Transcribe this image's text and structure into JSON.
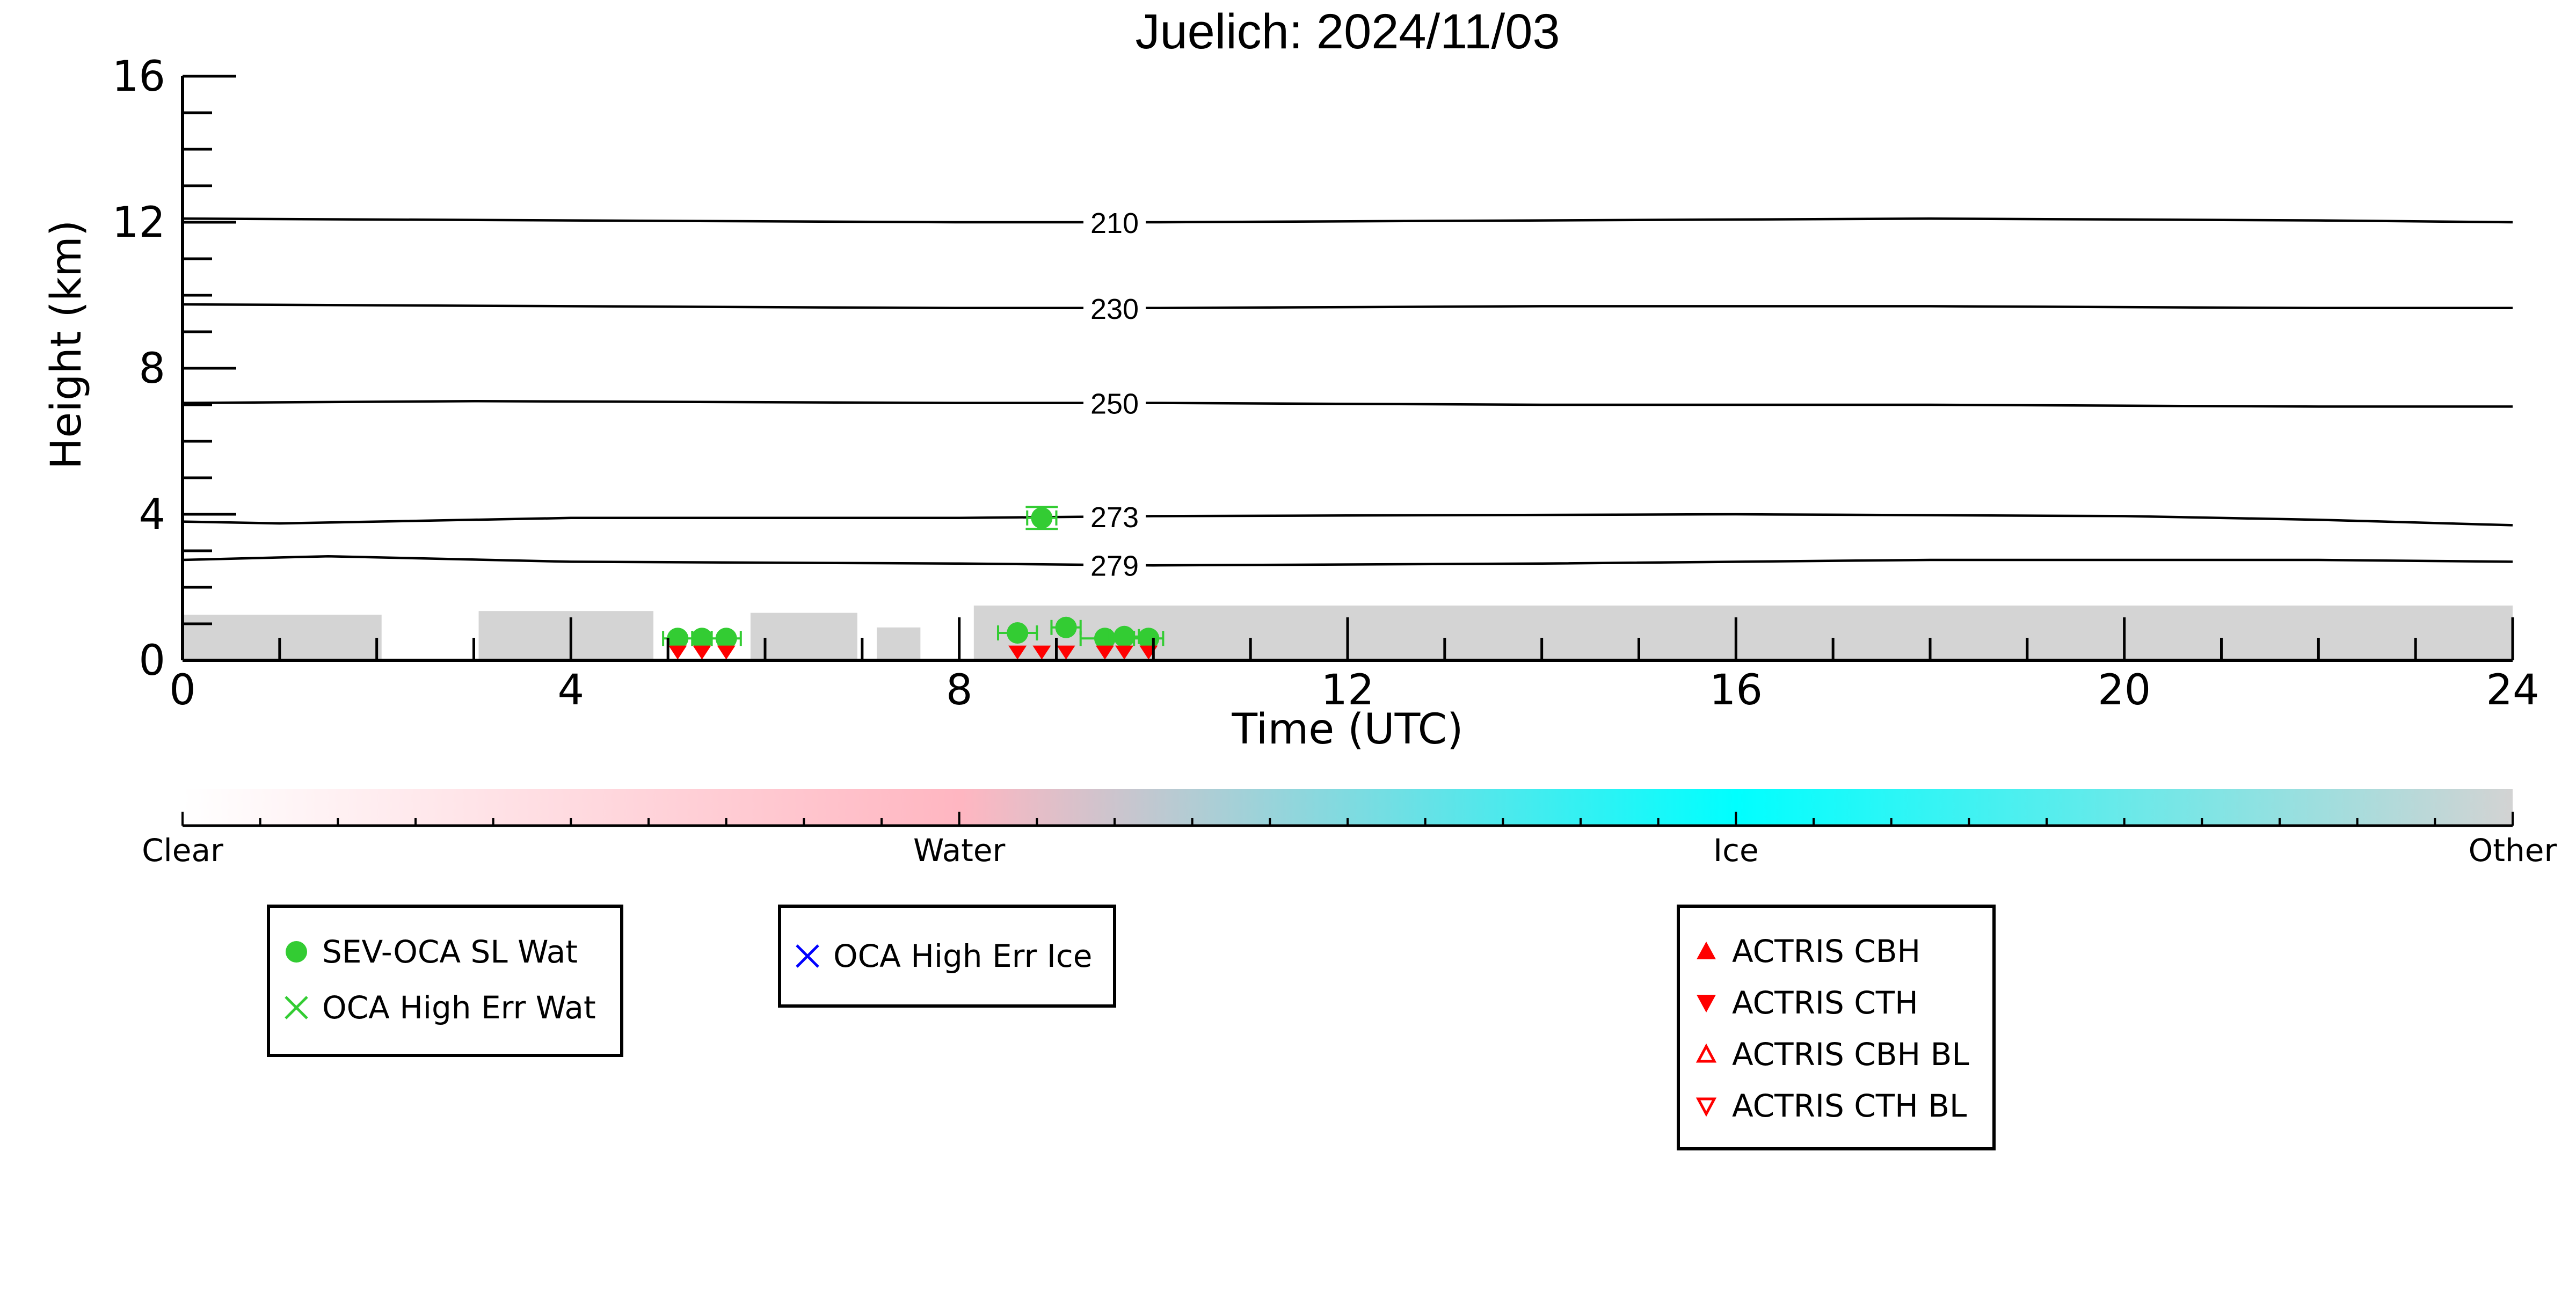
{
  "chart_data": {
    "type": "scatter",
    "title": "Juelich: 2024/11/03",
    "xlabel": "Time (UTC)",
    "ylabel": "Height (km)",
    "xlim": [
      0,
      24
    ],
    "ylim": [
      0,
      16
    ],
    "x_ticks": [
      0,
      4,
      8,
      12,
      16,
      20,
      24
    ],
    "y_ticks": [
      0,
      4,
      8,
      12,
      16
    ],
    "grid": false,
    "isotherms": [
      {
        "label": "210",
        "points": [
          [
            0,
            12.1
          ],
          [
            4,
            12.05
          ],
          [
            8,
            12.0
          ],
          [
            10,
            12.0
          ],
          [
            14,
            12.05
          ],
          [
            18,
            12.1
          ],
          [
            22,
            12.05
          ],
          [
            24,
            12.0
          ]
        ]
      },
      {
        "label": "230",
        "points": [
          [
            0,
            9.75
          ],
          [
            4,
            9.7
          ],
          [
            8,
            9.65
          ],
          [
            10,
            9.65
          ],
          [
            14,
            9.7
          ],
          [
            18,
            9.7
          ],
          [
            22,
            9.65
          ],
          [
            24,
            9.65
          ]
        ]
      },
      {
        "label": "250",
        "points": [
          [
            0,
            7.05
          ],
          [
            3,
            7.1
          ],
          [
            8,
            7.05
          ],
          [
            10,
            7.05
          ],
          [
            14,
            7.0
          ],
          [
            18,
            7.0
          ],
          [
            22,
            6.95
          ],
          [
            24,
            6.95
          ]
        ]
      },
      {
        "label": "273",
        "points": [
          [
            0,
            3.8
          ],
          [
            1,
            3.75
          ],
          [
            4,
            3.9
          ],
          [
            8,
            3.9
          ],
          [
            10,
            3.95
          ],
          [
            16,
            4.0
          ],
          [
            20,
            3.95
          ],
          [
            22,
            3.85
          ],
          [
            24,
            3.7
          ]
        ]
      },
      {
        "label": "279",
        "points": [
          [
            0,
            2.75
          ],
          [
            1.5,
            2.85
          ],
          [
            4,
            2.7
          ],
          [
            8,
            2.65
          ],
          [
            10,
            2.6
          ],
          [
            14,
            2.65
          ],
          [
            18,
            2.75
          ],
          [
            22,
            2.75
          ],
          [
            24,
            2.7
          ]
        ]
      }
    ],
    "isotherm_label_x": 9.6,
    "cloud_mask_blocks": [
      {
        "x0": 0.0,
        "x1": 2.05,
        "top": 1.25
      },
      {
        "x0": 3.05,
        "x1": 4.85,
        "top": 1.35
      },
      {
        "x0": 5.85,
        "x1": 6.95,
        "top": 1.3
      },
      {
        "x0": 7.15,
        "x1": 7.6,
        "top": 0.9
      },
      {
        "x0": 8.15,
        "x1": 24.0,
        "top": 1.5
      }
    ],
    "series": [
      {
        "name": "SEV-OCA SL Wat",
        "marker": "circle",
        "color": "#33cc33",
        "points": [
          {
            "x": 5.1,
            "y": 0.6,
            "xerr": 0.15
          },
          {
            "x": 5.35,
            "y": 0.6,
            "xerr": 0.1
          },
          {
            "x": 5.6,
            "y": 0.6,
            "xerr": 0.15
          },
          {
            "x": 8.6,
            "y": 0.75,
            "xerr": 0.2
          },
          {
            "x": 8.85,
            "y": 3.9,
            "xerr": 0.15,
            "yerr": 0.3
          },
          {
            "x": 9.1,
            "y": 0.9,
            "xerr": 0.15
          },
          {
            "x": 9.5,
            "y": 0.6,
            "xerr": 0.25
          },
          {
            "x": 9.7,
            "y": 0.65,
            "xerr": 0.15
          },
          {
            "x": 9.95,
            "y": 0.6,
            "xerr": 0.15
          }
        ]
      },
      {
        "name": "OCA High Err Wat",
        "marker": "x",
        "color": "#33cc33",
        "points": []
      },
      {
        "name": "OCA High Err Ice",
        "marker": "x",
        "color": "#0000ff",
        "points": []
      },
      {
        "name": "ACTRIS CBH",
        "marker": "triangle-up",
        "color": "#ff0000",
        "points": []
      },
      {
        "name": "ACTRIS CTH",
        "marker": "triangle-down",
        "color": "#ff0000",
        "points": [
          {
            "x": 5.1,
            "y": 0.02
          },
          {
            "x": 5.35,
            "y": 0.02
          },
          {
            "x": 5.6,
            "y": 0.02
          },
          {
            "x": 8.6,
            "y": 0.02
          },
          {
            "x": 8.85,
            "y": 0.02
          },
          {
            "x": 9.1,
            "y": 0.02
          },
          {
            "x": 9.5,
            "y": 0.02
          },
          {
            "x": 9.7,
            "y": 0.02
          },
          {
            "x": 9.95,
            "y": 0.02
          }
        ]
      },
      {
        "name": "ACTRIS CBH BL",
        "marker": "triangle-up-open",
        "color": "#ff0000",
        "points": []
      },
      {
        "name": "ACTRIS CTH BL",
        "marker": "triangle-down-open",
        "color": "#ff0000",
        "points": []
      }
    ],
    "colorbar": {
      "labels": [
        "Clear",
        "Water",
        "Ice",
        "Other"
      ],
      "colors": [
        "#ffffff",
        "#ffb6c1",
        "#00ffff",
        "#d3d3d3"
      ]
    },
    "legends": [
      {
        "position": "lower-left",
        "entries": [
          "SEV-OCA SL Wat",
          "OCA High Err Wat"
        ]
      },
      {
        "position": "lower-center-left",
        "entries": [
          "OCA High Err Ice"
        ]
      },
      {
        "position": "lower-right",
        "entries": [
          "ACTRIS CBH",
          "ACTRIS CTH",
          "ACTRIS CBH BL",
          "ACTRIS CTH BL"
        ]
      }
    ]
  }
}
